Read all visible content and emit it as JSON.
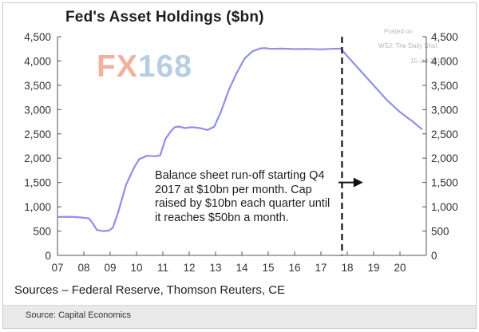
{
  "chart_data": {
    "type": "line",
    "title": "Fed's Asset Holdings ($bn)",
    "xlabel": "",
    "ylabel": "",
    "x_range": [
      2007,
      2021
    ],
    "ylim": [
      0,
      4500
    ],
    "x_tick_labels": [
      "07",
      "08",
      "09",
      "10",
      "11",
      "12",
      "13",
      "14",
      "15",
      "16",
      "17",
      "18",
      "19",
      "20"
    ],
    "y_tick_labels": [
      "0",
      "500",
      "1,000",
      "1,500",
      "2,000",
      "2,500",
      "3,000",
      "3,500",
      "4,000",
      "4,500"
    ],
    "y_ticks": [
      0,
      500,
      1000,
      1500,
      2000,
      2500,
      3000,
      3500,
      4000,
      4500
    ],
    "grid": false,
    "series": [
      {
        "color": "#8f8fe6",
        "x": [
          2007.0,
          2007.5,
          2007.9,
          2008.2,
          2008.35,
          2008.5,
          2008.75,
          2008.95,
          2009.1,
          2009.3,
          2009.6,
          2009.9,
          2010.1,
          2010.4,
          2010.7,
          2010.9,
          2011.1,
          2011.3,
          2011.45,
          2011.6,
          2011.85,
          2012.1,
          2012.4,
          2012.7,
          2012.95,
          2013.2,
          2013.5,
          2013.8,
          2014.1,
          2014.4,
          2014.7,
          2014.9,
          2015.1,
          2015.5,
          2016.0,
          2016.5,
          2017.0,
          2017.4,
          2017.75,
          2018.0,
          2018.5,
          2019.0,
          2019.5,
          2020.0,
          2020.5,
          2020.85
        ],
        "y": [
          790,
          795,
          780,
          760,
          650,
          520,
          500,
          510,
          570,
          880,
          1450,
          1800,
          1980,
          2050,
          2040,
          2060,
          2400,
          2550,
          2640,
          2650,
          2620,
          2640,
          2620,
          2580,
          2650,
          2950,
          3400,
          3750,
          4050,
          4200,
          4260,
          4265,
          4250,
          4255,
          4245,
          4248,
          4240,
          4250,
          4255,
          4100,
          3800,
          3500,
          3200,
          2950,
          2750,
          2590
        ]
      }
    ],
    "vline": {
      "x": 2017.8,
      "style": "dashed"
    },
    "annotation": "Balance sheet run-off starting Q4 2017 at $10bn per month. Cap raised by $10bn each quarter until it reaches $50bn a month.",
    "annotation_arrow": {
      "from_x": 2017.55,
      "to_x": 2018.6,
      "y": 1500
    }
  },
  "sources": "Sources – Federal Reserve, Thomson Reuters, CE",
  "caption": "Source: Capital Economics",
  "logo": {
    "prefix": "FX",
    "digits": "168"
  },
  "watermark": {
    "line1": "Posted on",
    "line2": "WSJ: The Daily Shot",
    "line3": "15-Jul-2019"
  }
}
